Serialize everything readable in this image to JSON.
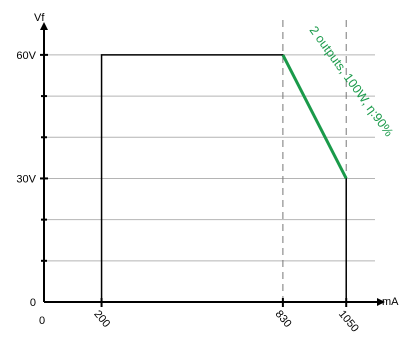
{
  "chart_data": {
    "type": "line",
    "title": "",
    "xlabel": "mA",
    "ylabel": "Vf",
    "xlim": [
      0,
      1150
    ],
    "ylim": [
      0,
      67.5
    ],
    "grid": true,
    "x_ticks": [
      {
        "value": 0,
        "label": "0"
      },
      {
        "value": 200,
        "label": "200"
      },
      {
        "value": 830,
        "label": "830"
      },
      {
        "value": 1050,
        "label": "1050"
      }
    ],
    "y_ticks": [
      {
        "value": 0,
        "label": "0"
      },
      {
        "value": 30,
        "label": "30V"
      },
      {
        "value": 60,
        "label": "60V"
      }
    ],
    "y_minor_ticks": [
      10,
      20,
      40,
      50
    ],
    "series": [
      {
        "name": "",
        "color": "#000000",
        "x": [
          200,
          200,
          830,
          1050,
          1050
        ],
        "y": [
          0,
          60,
          60,
          30,
          0
        ]
      },
      {
        "name": "2 outputs, 100W, η:90%",
        "color": "#1a9a4a",
        "x": [
          830,
          1050
        ],
        "y": [
          60,
          30
        ]
      }
    ],
    "reference_lines": [
      {
        "x": 830,
        "style": "dashed"
      },
      {
        "x": 1050,
        "style": "dashed"
      }
    ],
    "annotation": "2 outputs, 100W, η:90%"
  }
}
